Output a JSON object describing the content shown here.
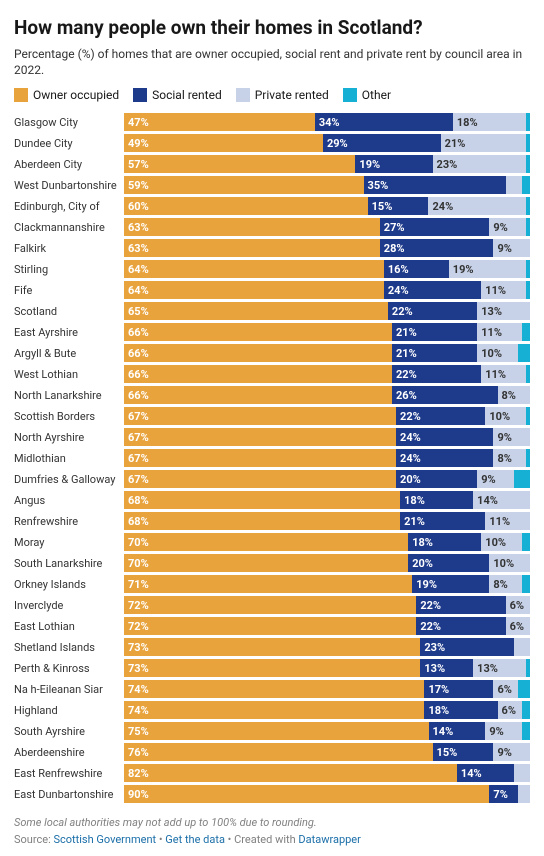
{
  "title": "How many people own their homes in Scotland?",
  "subtitle": "Percentage (%) of homes that are owner occupied, social rent and private rent by council area in 2022.",
  "legend": [
    {
      "label": "Owner occupied",
      "color": "#e8a33d"
    },
    {
      "label": "Social rented",
      "color": "#1e3a8a"
    },
    {
      "label": "Private rented",
      "color": "#c7d2e8"
    },
    {
      "label": "Other",
      "color": "#15b0d4"
    }
  ],
  "font": {
    "title_size": 19,
    "subtitle_size": 12,
    "legend_size": 12,
    "row_label_size": 11,
    "seg_label_size": 11,
    "notes_size": 11
  },
  "rows": [
    {
      "label": "Glasgow City",
      "owner": 47,
      "owner_l": "47%",
      "social": 34,
      "social_l": "34%",
      "private": 18,
      "private_l": "18%",
      "other": 1
    },
    {
      "label": "Dundee City",
      "owner": 49,
      "owner_l": "49%",
      "social": 29,
      "social_l": "29%",
      "private": 21,
      "private_l": "21%",
      "other": 1
    },
    {
      "label": "Aberdeen City",
      "owner": 57,
      "owner_l": "57%",
      "social": 19,
      "social_l": "19%",
      "private": 23,
      "private_l": "23%",
      "other": 1
    },
    {
      "label": "West Dunbartonshire",
      "owner": 59,
      "owner_l": "59%",
      "social": 35,
      "social_l": "35%",
      "private": 4,
      "private_l": "",
      "other": 2
    },
    {
      "label": "Edinburgh, City of",
      "owner": 60,
      "owner_l": "60%",
      "social": 15,
      "social_l": "15%",
      "private": 24,
      "private_l": "24%",
      "other": 1
    },
    {
      "label": "Clackmannanshire",
      "owner": 63,
      "owner_l": "63%",
      "social": 27,
      "social_l": "27%",
      "private": 9,
      "private_l": "9%",
      "other": 1
    },
    {
      "label": "Falkirk",
      "owner": 63,
      "owner_l": "63%",
      "social": 28,
      "social_l": "28%",
      "private": 9,
      "private_l": "9%",
      "other": 0
    },
    {
      "label": "Stirling",
      "owner": 64,
      "owner_l": "64%",
      "social": 16,
      "social_l": "16%",
      "private": 19,
      "private_l": "19%",
      "other": 1
    },
    {
      "label": "Fife",
      "owner": 64,
      "owner_l": "64%",
      "social": 24,
      "social_l": "24%",
      "private": 11,
      "private_l": "11%",
      "other": 1
    },
    {
      "label": "Scotland",
      "owner": 65,
      "owner_l": "65%",
      "social": 22,
      "social_l": "22%",
      "private": 13,
      "private_l": "13%",
      "other": 0
    },
    {
      "label": "East Ayrshire",
      "owner": 66,
      "owner_l": "66%",
      "social": 21,
      "social_l": "21%",
      "private": 11,
      "private_l": "11%",
      "other": 2
    },
    {
      "label": "Argyll & Bute",
      "owner": 66,
      "owner_l": "66%",
      "social": 21,
      "social_l": "21%",
      "private": 10,
      "private_l": "10%",
      "other": 3
    },
    {
      "label": "West Lothian",
      "owner": 66,
      "owner_l": "66%",
      "social": 22,
      "social_l": "22%",
      "private": 11,
      "private_l": "11%",
      "other": 1
    },
    {
      "label": "North Lanarkshire",
      "owner": 66,
      "owner_l": "66%",
      "social": 26,
      "social_l": "26%",
      "private": 8,
      "private_l": "8%",
      "other": 0
    },
    {
      "label": "Scottish Borders",
      "owner": 67,
      "owner_l": "67%",
      "social": 22,
      "social_l": "22%",
      "private": 10,
      "private_l": "10%",
      "other": 1
    },
    {
      "label": "North Ayrshire",
      "owner": 67,
      "owner_l": "67%",
      "social": 24,
      "social_l": "24%",
      "private": 9,
      "private_l": "9%",
      "other": 0
    },
    {
      "label": "Midlothian",
      "owner": 67,
      "owner_l": "67%",
      "social": 24,
      "social_l": "24%",
      "private": 8,
      "private_l": "8%",
      "other": 1
    },
    {
      "label": "Dumfries & Galloway",
      "owner": 67,
      "owner_l": "67%",
      "social": 20,
      "social_l": "20%",
      "private": 9,
      "private_l": "9%",
      "other": 4
    },
    {
      "label": "Angus",
      "owner": 68,
      "owner_l": "68%",
      "social": 18,
      "social_l": "18%",
      "private": 14,
      "private_l": "14%",
      "other": 0
    },
    {
      "label": "Renfrewshire",
      "owner": 68,
      "owner_l": "68%",
      "social": 21,
      "social_l": "21%",
      "private": 11,
      "private_l": "11%",
      "other": 0
    },
    {
      "label": "Moray",
      "owner": 70,
      "owner_l": "70%",
      "social": 18,
      "social_l": "18%",
      "private": 10,
      "private_l": "10%",
      "other": 2
    },
    {
      "label": "South Lanarkshire",
      "owner": 70,
      "owner_l": "70%",
      "social": 20,
      "social_l": "20%",
      "private": 10,
      "private_l": "10%",
      "other": 0
    },
    {
      "label": "Orkney Islands",
      "owner": 71,
      "owner_l": "71%",
      "social": 19,
      "social_l": "19%",
      "private": 8,
      "private_l": "8%",
      "other": 2
    },
    {
      "label": "Inverclyde",
      "owner": 72,
      "owner_l": "72%",
      "social": 22,
      "social_l": "22%",
      "private": 6,
      "private_l": "6%",
      "other": 0
    },
    {
      "label": "East Lothian",
      "owner": 72,
      "owner_l": "72%",
      "social": 22,
      "social_l": "22%",
      "private": 6,
      "private_l": "6%",
      "other": 0
    },
    {
      "label": "Shetland Islands",
      "owner": 73,
      "owner_l": "73%",
      "social": 23,
      "social_l": "23%",
      "private": 4,
      "private_l": "",
      "other": 0
    },
    {
      "label": "Perth & Kinross",
      "owner": 73,
      "owner_l": "73%",
      "social": 13,
      "social_l": "13%",
      "private": 13,
      "private_l": "13%",
      "other": 1
    },
    {
      "label": "Na h-Eileanan Siar",
      "owner": 74,
      "owner_l": "74%",
      "social": 17,
      "social_l": "17%",
      "private": 6,
      "private_l": "6%",
      "other": 3
    },
    {
      "label": "Highland",
      "owner": 74,
      "owner_l": "74%",
      "social": 18,
      "social_l": "18%",
      "private": 6,
      "private_l": "6%",
      "other": 2
    },
    {
      "label": "South Ayrshire",
      "owner": 75,
      "owner_l": "75%",
      "social": 14,
      "social_l": "14%",
      "private": 9,
      "private_l": "9%",
      "other": 2
    },
    {
      "label": "Aberdeenshire",
      "owner": 76,
      "owner_l": "76%",
      "social": 15,
      "social_l": "15%",
      "private": 9,
      "private_l": "9%",
      "other": 0
    },
    {
      "label": "East Renfrewshire",
      "owner": 82,
      "owner_l": "82%",
      "social": 14,
      "social_l": "14%",
      "private": 4,
      "private_l": "",
      "other": 0
    },
    {
      "label": "East Dunbartonshire",
      "owner": 90,
      "owner_l": "90%",
      "social": 7,
      "social_l": "7%",
      "private": 3,
      "private_l": "",
      "other": 0
    }
  ],
  "notes": "Some local authorities may not add up to 100% due to rounding.",
  "source_prefix": "Source: ",
  "source_links": [
    "Scottish Government",
    "Get the data",
    "Datawrapper"
  ],
  "source_sep": [
    " • ",
    " • Created with "
  ]
}
